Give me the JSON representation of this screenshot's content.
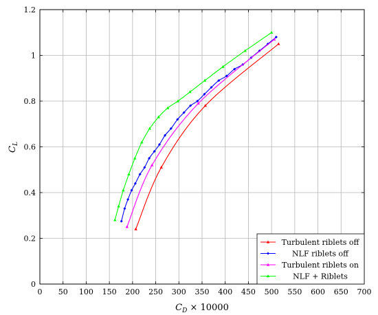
{
  "chart_data": {
    "type": "line",
    "title": "",
    "xlabel": "C_D × 10000",
    "xlabel_parts": {
      "var": "C",
      "sub": "D",
      "rest": " × 10000"
    },
    "ylabel": "C_L",
    "ylabel_parts": {
      "var": "C",
      "sub": "L"
    },
    "xlim": [
      0,
      700
    ],
    "ylim": [
      0,
      1.2
    ],
    "xticks": [
      0,
      50,
      100,
      150,
      200,
      250,
      300,
      350,
      400,
      450,
      500,
      550,
      600,
      650,
      700
    ],
    "yticks": [
      0,
      0.2,
      0.4,
      0.6,
      0.8,
      1,
      1.2
    ],
    "xtick_labels": [
      "0",
      "50",
      "100",
      "150",
      "200",
      "250",
      "300",
      "350",
      "400",
      "450",
      "500",
      "550",
      "600",
      "650",
      "700"
    ],
    "ytick_labels": [
      "0",
      "0.2",
      "0.4",
      "0.6",
      "0.8",
      "1",
      "1.2"
    ],
    "grid": true,
    "legend_position": "bottom-right",
    "series": [
      {
        "name": "Turbulent riblets off",
        "color": "#ff0000",
        "marker": "triangle",
        "x": [
          207,
          262,
          357,
          515
        ],
        "y": [
          0.24,
          0.51,
          0.78,
          1.05
        ]
      },
      {
        "name": "NLF riblets off",
        "color": "#0000ff",
        "marker": "diamond",
        "x": [
          176,
          183,
          190,
          198,
          206,
          216,
          226,
          236,
          247,
          258,
          270,
          283,
          297,
          311,
          325,
          340,
          355,
          370,
          386,
          403,
          420,
          438,
          456,
          474,
          492,
          510
        ],
        "y": [
          0.275,
          0.33,
          0.37,
          0.41,
          0.44,
          0.48,
          0.51,
          0.55,
          0.58,
          0.61,
          0.65,
          0.68,
          0.72,
          0.75,
          0.78,
          0.8,
          0.83,
          0.86,
          0.89,
          0.91,
          0.94,
          0.96,
          0.99,
          1.02,
          1.05,
          1.08
        ]
      },
      {
        "name": "Turbulent riblets on",
        "color": "#ff00ff",
        "marker": "triangle",
        "x": [
          188,
          242,
          342,
          506
        ],
        "y": [
          0.25,
          0.52,
          0.79,
          1.07
        ]
      },
      {
        "name": "NLF + Riblets",
        "color": "#00ff00",
        "marker": "triangle",
        "x": [
          162,
          170,
          180,
          192,
          205,
          220,
          237,
          256,
          276,
          298,
          324,
          356,
          395,
          443,
          500
        ],
        "y": [
          0.28,
          0.34,
          0.41,
          0.48,
          0.55,
          0.62,
          0.68,
          0.73,
          0.77,
          0.8,
          0.84,
          0.89,
          0.95,
          1.02,
          1.1
        ]
      }
    ]
  }
}
